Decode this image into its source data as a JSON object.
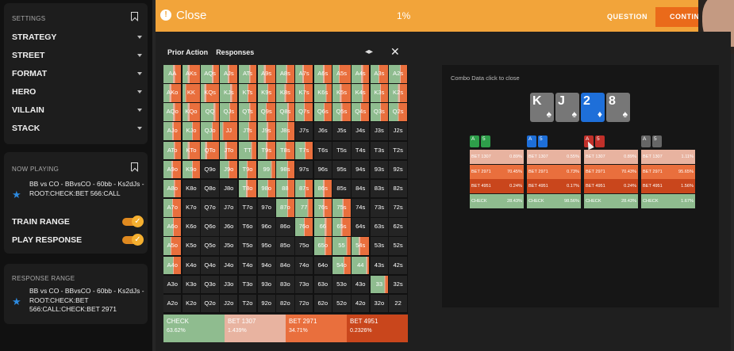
{
  "sidebar": {
    "settings_title": "SETTINGS",
    "settings": [
      "STRATEGY",
      "STREET",
      "FORMAT",
      "HERO",
      "VILLAIN",
      "STACK"
    ],
    "now_playing_title": "NOW PLAYING",
    "now_playing_text": "BB vs CO - BBvsCO - 60bb - Ks2dJs - ROOT:CHECK:BET 566:CALL",
    "train_range_label": "TRAIN RANGE",
    "play_response_label": "PLAY RESPONSE",
    "response_range_title": "RESPONSE RANGE",
    "response_range_text": "BB vs CO - BBvsCO - 60bb - Ks2dJs - ROOT:CHECK:BET 566:CALL:CHECK:BET 2971",
    "toggle_mark": "✓"
  },
  "topbar": {
    "close_label": "Close",
    "progress": "1%",
    "question_label": "QUESTION",
    "continue_label": "CONTINUE"
  },
  "grid_panel": {
    "prior_action_label": "Prior Action",
    "responses_label": "Responses"
  },
  "colors": {
    "check": "#8fbc8f",
    "bet1307": "#e8b3a0",
    "bet2971": "#e96f3d",
    "bet4951": "#c9461c",
    "dark": "#242424"
  },
  "grid": {
    "cells": [
      [
        "AA",
        "AKs",
        "AQs",
        "AJs",
        "ATs",
        "A9s",
        "A8s",
        "A7s",
        "A6s",
        "A5s",
        "A4s",
        "A3s",
        "A2s"
      ],
      [
        "AKo",
        "KK",
        "KQs",
        "KJs",
        "KTs",
        "K9s",
        "K8s",
        "K7s",
        "K6s",
        "K5s",
        "K4s",
        "K3s",
        "K2s"
      ],
      [
        "AQo",
        "KQo",
        "QQ",
        "QJs",
        "QTs",
        "Q9s",
        "Q8s",
        "Q7s",
        "Q6s",
        "Q5s",
        "Q4s",
        "Q3s",
        "Q2s"
      ],
      [
        "AJo",
        "KJo",
        "QJo",
        "JJ",
        "JTs",
        "J9s",
        "J8s",
        "J7s",
        "J6s",
        "J5s",
        "J4s",
        "J3s",
        "J2s"
      ],
      [
        "ATo",
        "KTo",
        "QTo",
        "JTo",
        "TT",
        "T9s",
        "T8s",
        "T7s",
        "T6s",
        "T5s",
        "T4s",
        "T3s",
        "T2s"
      ],
      [
        "A9o",
        "K9o",
        "Q9o",
        "J9o",
        "T9o",
        "99",
        "98s",
        "97s",
        "96s",
        "95s",
        "94s",
        "93s",
        "92s"
      ],
      [
        "A8o",
        "K8o",
        "Q8o",
        "J8o",
        "T8o",
        "98o",
        "88",
        "87s",
        "86s",
        "85s",
        "84s",
        "83s",
        "82s"
      ],
      [
        "A7o",
        "K7o",
        "Q7o",
        "J7o",
        "T7o",
        "97o",
        "87o",
        "77",
        "76s",
        "75s",
        "74s",
        "73s",
        "72s"
      ],
      [
        "A6o",
        "K6o",
        "Q6o",
        "J6o",
        "T6o",
        "96o",
        "86o",
        "76o",
        "66",
        "65s",
        "64s",
        "63s",
        "62s"
      ],
      [
        "A5o",
        "K5o",
        "Q5o",
        "J5o",
        "T5o",
        "95o",
        "85o",
        "75o",
        "65o",
        "55",
        "54s",
        "53s",
        "52s"
      ],
      [
        "A4o",
        "K4o",
        "Q4o",
        "J4o",
        "T4o",
        "94o",
        "84o",
        "74o",
        "64o",
        "54o",
        "44",
        "43s",
        "42s"
      ],
      [
        "A3o",
        "K3o",
        "Q3o",
        "J3o",
        "T3o",
        "93o",
        "83o",
        "73o",
        "63o",
        "53o",
        "43o",
        "33",
        "32s"
      ],
      [
        "A2o",
        "K2o",
        "Q2o",
        "J2o",
        "T2o",
        "92o",
        "82o",
        "72o",
        "62o",
        "52o",
        "42o",
        "32o",
        "22"
      ]
    ],
    "hands": {
      "AA": [
        0.55,
        0.1,
        0.35
      ],
      "AKs": [
        0.3,
        0.1,
        0.6
      ],
      "AQs": [
        0.6,
        0.1,
        0.3
      ],
      "AJs": [
        0.45,
        0.1,
        0.45
      ],
      "ATs": [
        0.6,
        0.05,
        0.35
      ],
      "A9s": [
        0.35,
        0.1,
        0.55
      ],
      "A8s": [
        0.55,
        0.05,
        0.4
      ],
      "A7s": [
        0.4,
        0.1,
        0.5
      ],
      "A6s": [
        0.5,
        0.1,
        0.4
      ],
      "A5s": [
        0.35,
        0.05,
        0.6
      ],
      "A4s": [
        0.55,
        0.1,
        0.35
      ],
      "A3s": [
        0.45,
        0.05,
        0.5
      ],
      "A2s": [
        0.6,
        0.05,
        0.35
      ],
      "AKo": [
        0.35,
        0.1,
        0.55
      ],
      "KK": [
        0.15,
        0.05,
        0.8
      ],
      "KQs": [
        0.2,
        0.1,
        0.7
      ],
      "KJs": [
        0.6,
        0.1,
        0.3
      ],
      "KTs": [
        0.5,
        0.05,
        0.45
      ],
      "K9s": [
        0.55,
        0.05,
        0.4
      ],
      "K8s": [
        0.45,
        0.1,
        0.45
      ],
      "K7s": [
        0.5,
        0.05,
        0.45
      ],
      "K6s": [
        0.65,
        0.05,
        0.3
      ],
      "K5s": [
        0.4,
        0.1,
        0.5
      ],
      "K4s": [
        0.6,
        0.05,
        0.35
      ],
      "K3s": [
        0.55,
        0.05,
        0.4
      ],
      "K2s": [
        0.5,
        0.1,
        0.4
      ],
      "AQo": [
        0.55,
        0.1,
        0.35
      ],
      "KQo": [
        0.3,
        0.1,
        0.6
      ],
      "QQ": [
        0.7,
        0.1,
        0.2
      ],
      "QJs": [
        0.55,
        0.05,
        0.4
      ],
      "QTs": [
        0.6,
        0.05,
        0.35
      ],
      "Q9s": [
        0.45,
        0.05,
        0.5
      ],
      "Q8s": [
        0.6,
        0.1,
        0.3
      ],
      "Q7s": [
        0.5,
        0.05,
        0.45
      ],
      "Q6s": [
        0.55,
        0.05,
        0.4
      ],
      "Q5s": [
        0.45,
        0.1,
        0.45
      ],
      "Q4s": [
        0.5,
        0.05,
        0.45
      ],
      "Q3s": [
        0.55,
        0.05,
        0.4
      ],
      "Q2s": [
        0.5,
        0.05,
        0.45
      ],
      "AJo": [
        0.5,
        0.1,
        0.4
      ],
      "KJo": [
        0.55,
        0.05,
        0.4
      ],
      "QJo": [
        0.6,
        0.05,
        0.35
      ],
      "JJ": [
        0.15,
        0.05,
        0.8
      ],
      "JTs": [
        0.55,
        0.05,
        0.4
      ],
      "J9s": [
        0.5,
        0.1,
        0.4
      ],
      "J8s": [
        0.6,
        0.05,
        0.35
      ],
      "ATo": [
        0.6,
        0.05,
        0.35
      ],
      "KTo": [
        0.3,
        0.1,
        0.6
      ],
      "QTo": [
        0.25,
        0.1,
        0.65
      ],
      "JTo": [
        0.3,
        0.1,
        0.6
      ],
      "TT": [
        0.7,
        0.05,
        0.25
      ],
      "T9s": [
        0.45,
        0.1,
        0.45
      ],
      "T8s": [
        0.5,
        0.05,
        0.45
      ],
      "T7s": [
        0.55,
        0.05,
        0.4
      ],
      "A9o": [
        0.45,
        0.1,
        0.45
      ],
      "K9o": [
        0.55,
        0.05,
        0.4
      ],
      "J9o": [
        0.5,
        0.05,
        0.45
      ],
      "T9o": [
        0.45,
        0.05,
        0.5
      ],
      "99": [
        0.75,
        0.05,
        0.2
      ],
      "98s": [
        0.6,
        0.05,
        0.35
      ],
      "A8o": [
        0.6,
        0.05,
        0.35
      ],
      "T8o": [
        0.4,
        0.1,
        0.5
      ],
      "98o": [
        0.55,
        0.05,
        0.4
      ],
      "88": [
        0.6,
        0.05,
        0.35
      ],
      "87s": [
        0.55,
        0.05,
        0.4
      ],
      "86s": [
        0.5,
        0.1,
        0.4
      ],
      "A7o": [
        0.5,
        0.05,
        0.45
      ],
      "87o": [
        0.6,
        0.05,
        0.35
      ],
      "77": [
        0.7,
        0.05,
        0.25
      ],
      "76s": [
        0.5,
        0.1,
        0.4
      ],
      "75s": [
        0.55,
        0.05,
        0.4
      ],
      "A6o": [
        0.55,
        0.05,
        0.4
      ],
      "76o": [
        0.5,
        0.05,
        0.45
      ],
      "66": [
        0.6,
        0.1,
        0.3
      ],
      "65s": [
        0.45,
        0.1,
        0.45
      ],
      "A5o": [
        0.4,
        0.05,
        0.55
      ],
      "65o": [
        0.6,
        0.05,
        0.35
      ],
      "55": [
        0.75,
        0.05,
        0.2
      ],
      "54s": [
        0.4,
        0.1,
        0.5
      ],
      "A4o": [
        0.55,
        0.05,
        0.4
      ],
      "54o": [
        0.6,
        0.05,
        0.35
      ],
      "44": [
        0.85,
        0.05,
        0.1
      ],
      "33": [
        0.8,
        0.05,
        0.15
      ]
    }
  },
  "grid_summary": [
    {
      "label": "CHECK",
      "value": "63.62%",
      "color": "#8fbc8f"
    },
    {
      "label": "BET 1307",
      "value": "1.439%",
      "color": "#e8b3a0"
    },
    {
      "label": "BET 2971",
      "value": "34.71%",
      "color": "#e96f3d"
    },
    {
      "label": "BET 4951",
      "value": "0.2326%",
      "color": "#c9461c"
    }
  ],
  "combo": {
    "title": "Combo Data",
    "hint": "click to close",
    "board": [
      {
        "rank": "K",
        "suit": "♠",
        "color": "#777"
      },
      {
        "rank": "J",
        "suit": "♠",
        "color": "#777"
      },
      {
        "rank": "2",
        "suit": "♦",
        "color": "#1e6fd9"
      },
      {
        "rank": "8",
        "suit": "♠",
        "color": "#777"
      }
    ],
    "combos": [
      {
        "cards": [
          {
            "rank": "A",
            "color": "#2e9e4a"
          },
          {
            "rank": "5",
            "color": "#2e9e4a"
          }
        ],
        "rows": [
          {
            "label": "BET 1307",
            "value": "0.89%",
            "color": "#e8b3a0"
          },
          {
            "label": "BET 2971",
            "value": "70.45%",
            "color": "#e96f3d"
          },
          {
            "label": "BET 4951",
            "value": "0.24%",
            "color": "#c9461c"
          },
          {
            "label": "CHECK",
            "value": "28.43%",
            "color": "#8fbc8f"
          }
        ]
      },
      {
        "cards": [
          {
            "rank": "A",
            "color": "#1e6fd9"
          },
          {
            "rank": "5",
            "color": "#1e6fd9"
          }
        ],
        "rows": [
          {
            "label": "BET 1307",
            "value": "0.55%",
            "color": "#e8b3a0"
          },
          {
            "label": "BET 2971",
            "value": "0.73%",
            "color": "#e96f3d"
          },
          {
            "label": "BET 4951",
            "value": "0.17%",
            "color": "#c9461c"
          },
          {
            "label": "CHECK",
            "value": "98.56%",
            "color": "#8fbc8f"
          }
        ]
      },
      {
        "cards": [
          {
            "rank": "A",
            "color": "#c0302a"
          },
          {
            "rank": "5",
            "color": "#c0302a"
          }
        ],
        "rows": [
          {
            "label": "BET 1307",
            "value": "0.89%",
            "color": "#e8b3a0"
          },
          {
            "label": "BET 2971",
            "value": "70.43%",
            "color": "#e96f3d"
          },
          {
            "label": "BET 4951",
            "value": "0.24%",
            "color": "#c9461c"
          },
          {
            "label": "CHECK",
            "value": "28.43%",
            "color": "#8fbc8f"
          }
        ]
      },
      {
        "cards": [
          {
            "rank": "A",
            "color": "#666"
          },
          {
            "rank": "5",
            "color": "#666"
          }
        ],
        "rows": [
          {
            "label": "BET 1307",
            "value": "1.11%",
            "color": "#e8b3a0"
          },
          {
            "label": "BET 2971",
            "value": "95.65%",
            "color": "#e96f3d"
          },
          {
            "label": "BET 4951",
            "value": "1.56%",
            "color": "#c9461c"
          },
          {
            "label": "CHECK",
            "value": "1.67%",
            "color": "#8fbc8f"
          }
        ]
      }
    ]
  }
}
